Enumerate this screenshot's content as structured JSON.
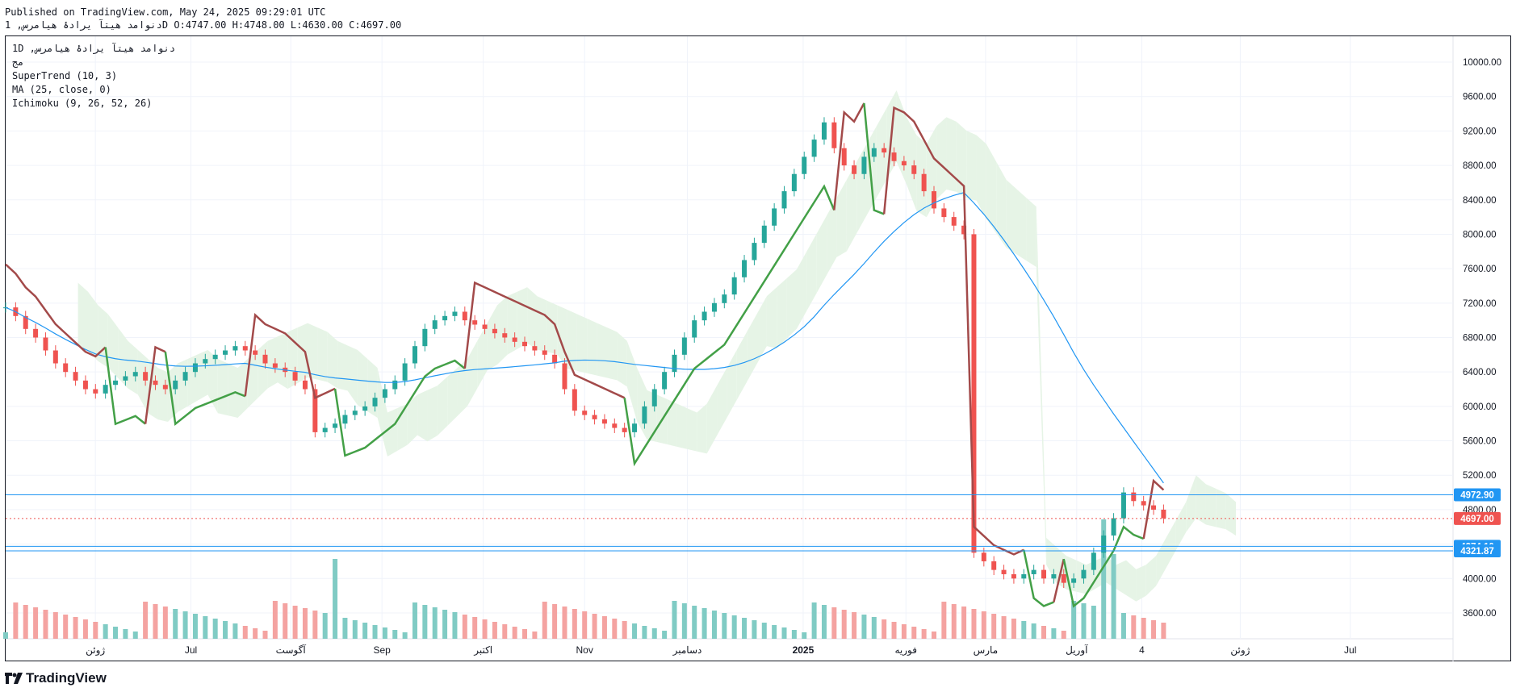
{
  "header": {
    "published": "Published on TradingView.com, May 24, 2025 09:29:01 UTC",
    "symbol": "دنوامد هیتآ یرادۀ هیامرس, 1D",
    "ohlc": {
      "o_label": "O:",
      "o": "4747.00",
      "h_label": "H:",
      "h": "4748.00",
      "l_label": "L:",
      "l": "4630.00",
      "c_label": "C:",
      "c": "4697.00"
    }
  },
  "legend": {
    "symbol": "1D ,دنوامد هیتآ یرادۀ هیامرس",
    "exchange": "مج",
    "supertrend": "SuperTrend (10, 3)",
    "ma": "MA (25, close, 0)",
    "ichimoku": "Ichimoku (9, 26, 52, 26)"
  },
  "brand": "TradingView",
  "colors": {
    "up": "#26a69a",
    "down": "#ef5350",
    "supertrend_up": "#43a047",
    "supertrend_down": "#a34a4a",
    "ma": "#2196f3",
    "cloud_bull": "#e6f4e6",
    "cloud_bear": "#fde6e6",
    "hline": "#2196f3",
    "price_tag": "#ef5350",
    "level_tag": "#2196f3",
    "volume_up": "#80cbc4",
    "volume_down": "#f4a3a1"
  },
  "chart_data": {
    "type": "candlestick",
    "ylim": [
      3300,
      10300
    ],
    "y_ticks": [
      3600,
      4000,
      4400,
      4800,
      5200,
      5600,
      6000,
      6400,
      6800,
      7200,
      7600,
      8000,
      8400,
      8800,
      9200,
      9600,
      10000
    ],
    "x_ticks": [
      {
        "label": "ژوئن",
        "t": 0.062
      },
      {
        "label": "Jul",
        "t": 0.128
      },
      {
        "label": "آگوست",
        "t": 0.197
      },
      {
        "label": "Sep",
        "t": 0.26
      },
      {
        "label": "اکتبر",
        "t": 0.33
      },
      {
        "label": "Nov",
        "t": 0.4
      },
      {
        "label": "دسامبر",
        "t": 0.471
      },
      {
        "label": "2025",
        "t": 0.551
      },
      {
        "label": "فوریه",
        "t": 0.622
      },
      {
        "label": "مارس",
        "t": 0.677
      },
      {
        "label": "آوریل",
        "t": 0.74
      },
      {
        "label": "4",
        "t": 0.785
      },
      {
        "label": "ژوئن",
        "t": 0.853
      },
      {
        "label": "Jul",
        "t": 0.929
      }
    ],
    "horizontal_levels": [
      4972.9,
      4374.1,
      4321.87
    ],
    "last_price": 4697.0,
    "close_series": [
      7150,
      7050,
      6900,
      6800,
      6650,
      6500,
      6400,
      6300,
      6200,
      6150,
      6250,
      6300,
      6350,
      6400,
      6300,
      6250,
      6200,
      6300,
      6400,
      6500,
      6550,
      6600,
      6650,
      6700,
      6650,
      6600,
      6500,
      6450,
      6400,
      6300,
      6200,
      5700,
      5750,
      5800,
      5900,
      5950,
      6000,
      6100,
      6200,
      6300,
      6500,
      6700,
      6900,
      7000,
      7050,
      7100,
      7000,
      6950,
      6900,
      6850,
      6800,
      6750,
      6700,
      6650,
      6600,
      6500,
      6200,
      5950,
      5900,
      5850,
      5800,
      5750,
      5700,
      5800,
      6000,
      6200,
      6400,
      6600,
      6800,
      7000,
      7100,
      7200,
      7300,
      7500,
      7700,
      7900,
      8100,
      8300,
      8500,
      8700,
      8900,
      9100,
      9300,
      9000,
      8800,
      8700,
      8900,
      9000,
      8950,
      8850,
      8800,
      8700,
      8500,
      8300,
      8200,
      8100,
      8000,
      4300,
      4200,
      4100,
      4050,
      4000,
      4050,
      4100,
      4000,
      4050,
      3950,
      4000,
      4100,
      4300,
      4500,
      4700,
      5000,
      4900,
      4850,
      4800,
      4700
    ]
  }
}
